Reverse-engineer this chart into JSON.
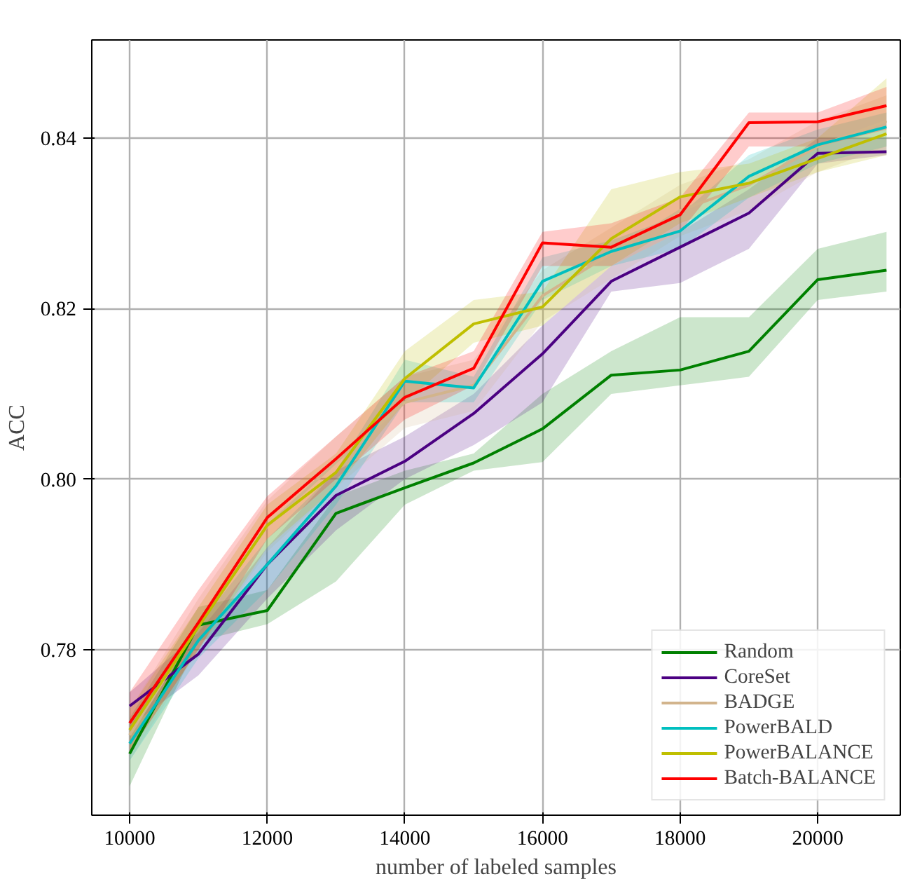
{
  "chart_data": {
    "type": "line",
    "xlabel": "number of labeled samples",
    "ylabel": "ACC",
    "x": [
      10000,
      11000,
      12000,
      13000,
      14000,
      15000,
      16000,
      17000,
      18000,
      19000,
      20000,
      21000
    ],
    "xlim": [
      9450,
      21200
    ],
    "ylim": [
      0.7606,
      0.8515
    ],
    "xticks": [
      10000,
      12000,
      14000,
      16000,
      18000,
      20000
    ],
    "yticks": [
      {
        "value": 0.78,
        "label": "0.78"
      },
      {
        "value": 0.8,
        "label": "0.80"
      },
      {
        "value": 0.82,
        "label": "0.82"
      },
      {
        "value": 0.84,
        "label": "0.84"
      }
    ],
    "grid": true,
    "legend": "bottom right",
    "line_style": "solid",
    "series": [
      {
        "name": "Random",
        "color": "#008000",
        "values": [
          0.7678,
          0.7829,
          0.7846,
          0.796,
          0.799,
          0.8019,
          0.8059,
          0.8122,
          0.8128,
          0.815,
          0.8234,
          0.8245
        ],
        "lower": [
          0.764,
          0.781,
          0.783,
          0.788,
          0.797,
          0.801,
          0.802,
          0.81,
          0.811,
          0.812,
          0.821,
          0.822
        ],
        "upper": [
          0.772,
          0.785,
          0.787,
          0.798,
          0.801,
          0.803,
          0.81,
          0.815,
          0.819,
          0.819,
          0.827,
          0.829
        ]
      },
      {
        "name": "CoreSet",
        "color": "#4b0082",
        "values": [
          0.7734,
          0.7795,
          0.79,
          0.7981,
          0.8021,
          0.8077,
          0.8147,
          0.8232,
          0.8272,
          0.8312,
          0.8382,
          0.8384
        ],
        "lower": [
          0.771,
          0.777,
          0.786,
          0.794,
          0.8,
          0.804,
          0.809,
          0.822,
          0.823,
          0.827,
          0.837,
          0.838
        ],
        "upper": [
          0.775,
          0.782,
          0.792,
          0.801,
          0.805,
          0.81,
          0.818,
          0.825,
          0.829,
          0.834,
          0.84,
          0.84
        ]
      },
      {
        "name": "BADGE",
        "color": "#d2b48c",
        "values": [
          0.77,
          0.783,
          0.7945,
          0.802,
          0.809,
          0.811,
          0.8215,
          0.8265,
          0.8315,
          0.8345,
          0.839,
          0.842
        ],
        "lower": [
          0.767,
          0.78,
          0.7915,
          0.799,
          0.806,
          0.808,
          0.8185,
          0.8235,
          0.8285,
          0.8315,
          0.836,
          0.839
        ],
        "upper": [
          0.773,
          0.786,
          0.7975,
          0.805,
          0.812,
          0.814,
          0.8245,
          0.8295,
          0.8345,
          0.8375,
          0.842,
          0.845
        ]
      },
      {
        "name": "PowerBALD",
        "color": "#00bfbf",
        "values": [
          0.769,
          0.7811,
          0.79,
          0.7992,
          0.8115,
          0.8107,
          0.8232,
          0.8267,
          0.8291,
          0.8355,
          0.8392,
          0.8413
        ],
        "lower": [
          0.767,
          0.779,
          0.787,
          0.797,
          0.809,
          0.809,
          0.821,
          0.825,
          0.827,
          0.833,
          0.837,
          0.839
        ],
        "upper": [
          0.771,
          0.783,
          0.793,
          0.801,
          0.814,
          0.812,
          0.826,
          0.828,
          0.831,
          0.838,
          0.841,
          0.843
        ]
      },
      {
        "name": "PowerBALANCE",
        "color": "#bfbf00",
        "values": [
          0.7706,
          0.7827,
          0.7946,
          0.8008,
          0.8118,
          0.8182,
          0.8202,
          0.8282,
          0.8331,
          0.8347,
          0.8376,
          0.8405
        ],
        "lower": [
          0.768,
          0.78,
          0.792,
          0.799,
          0.809,
          0.816,
          0.818,
          0.825,
          0.83,
          0.833,
          0.836,
          0.838
        ],
        "upper": [
          0.773,
          0.785,
          0.797,
          0.803,
          0.815,
          0.821,
          0.822,
          0.834,
          0.836,
          0.837,
          0.84,
          0.847
        ]
      },
      {
        "name": "Batch-BALANCE",
        "color": "#ff0000",
        "values": [
          0.7714,
          0.7832,
          0.7955,
          0.8024,
          0.8096,
          0.813,
          0.8277,
          0.8272,
          0.831,
          0.8418,
          0.8419,
          0.8438
        ],
        "lower": [
          0.768,
          0.78,
          0.793,
          0.8,
          0.807,
          0.811,
          0.825,
          0.825,
          0.829,
          0.839,
          0.839,
          0.841
        ],
        "upper": [
          0.775,
          0.787,
          0.798,
          0.805,
          0.812,
          0.815,
          0.829,
          0.83,
          0.833,
          0.843,
          0.843,
          0.846
        ]
      }
    ]
  }
}
